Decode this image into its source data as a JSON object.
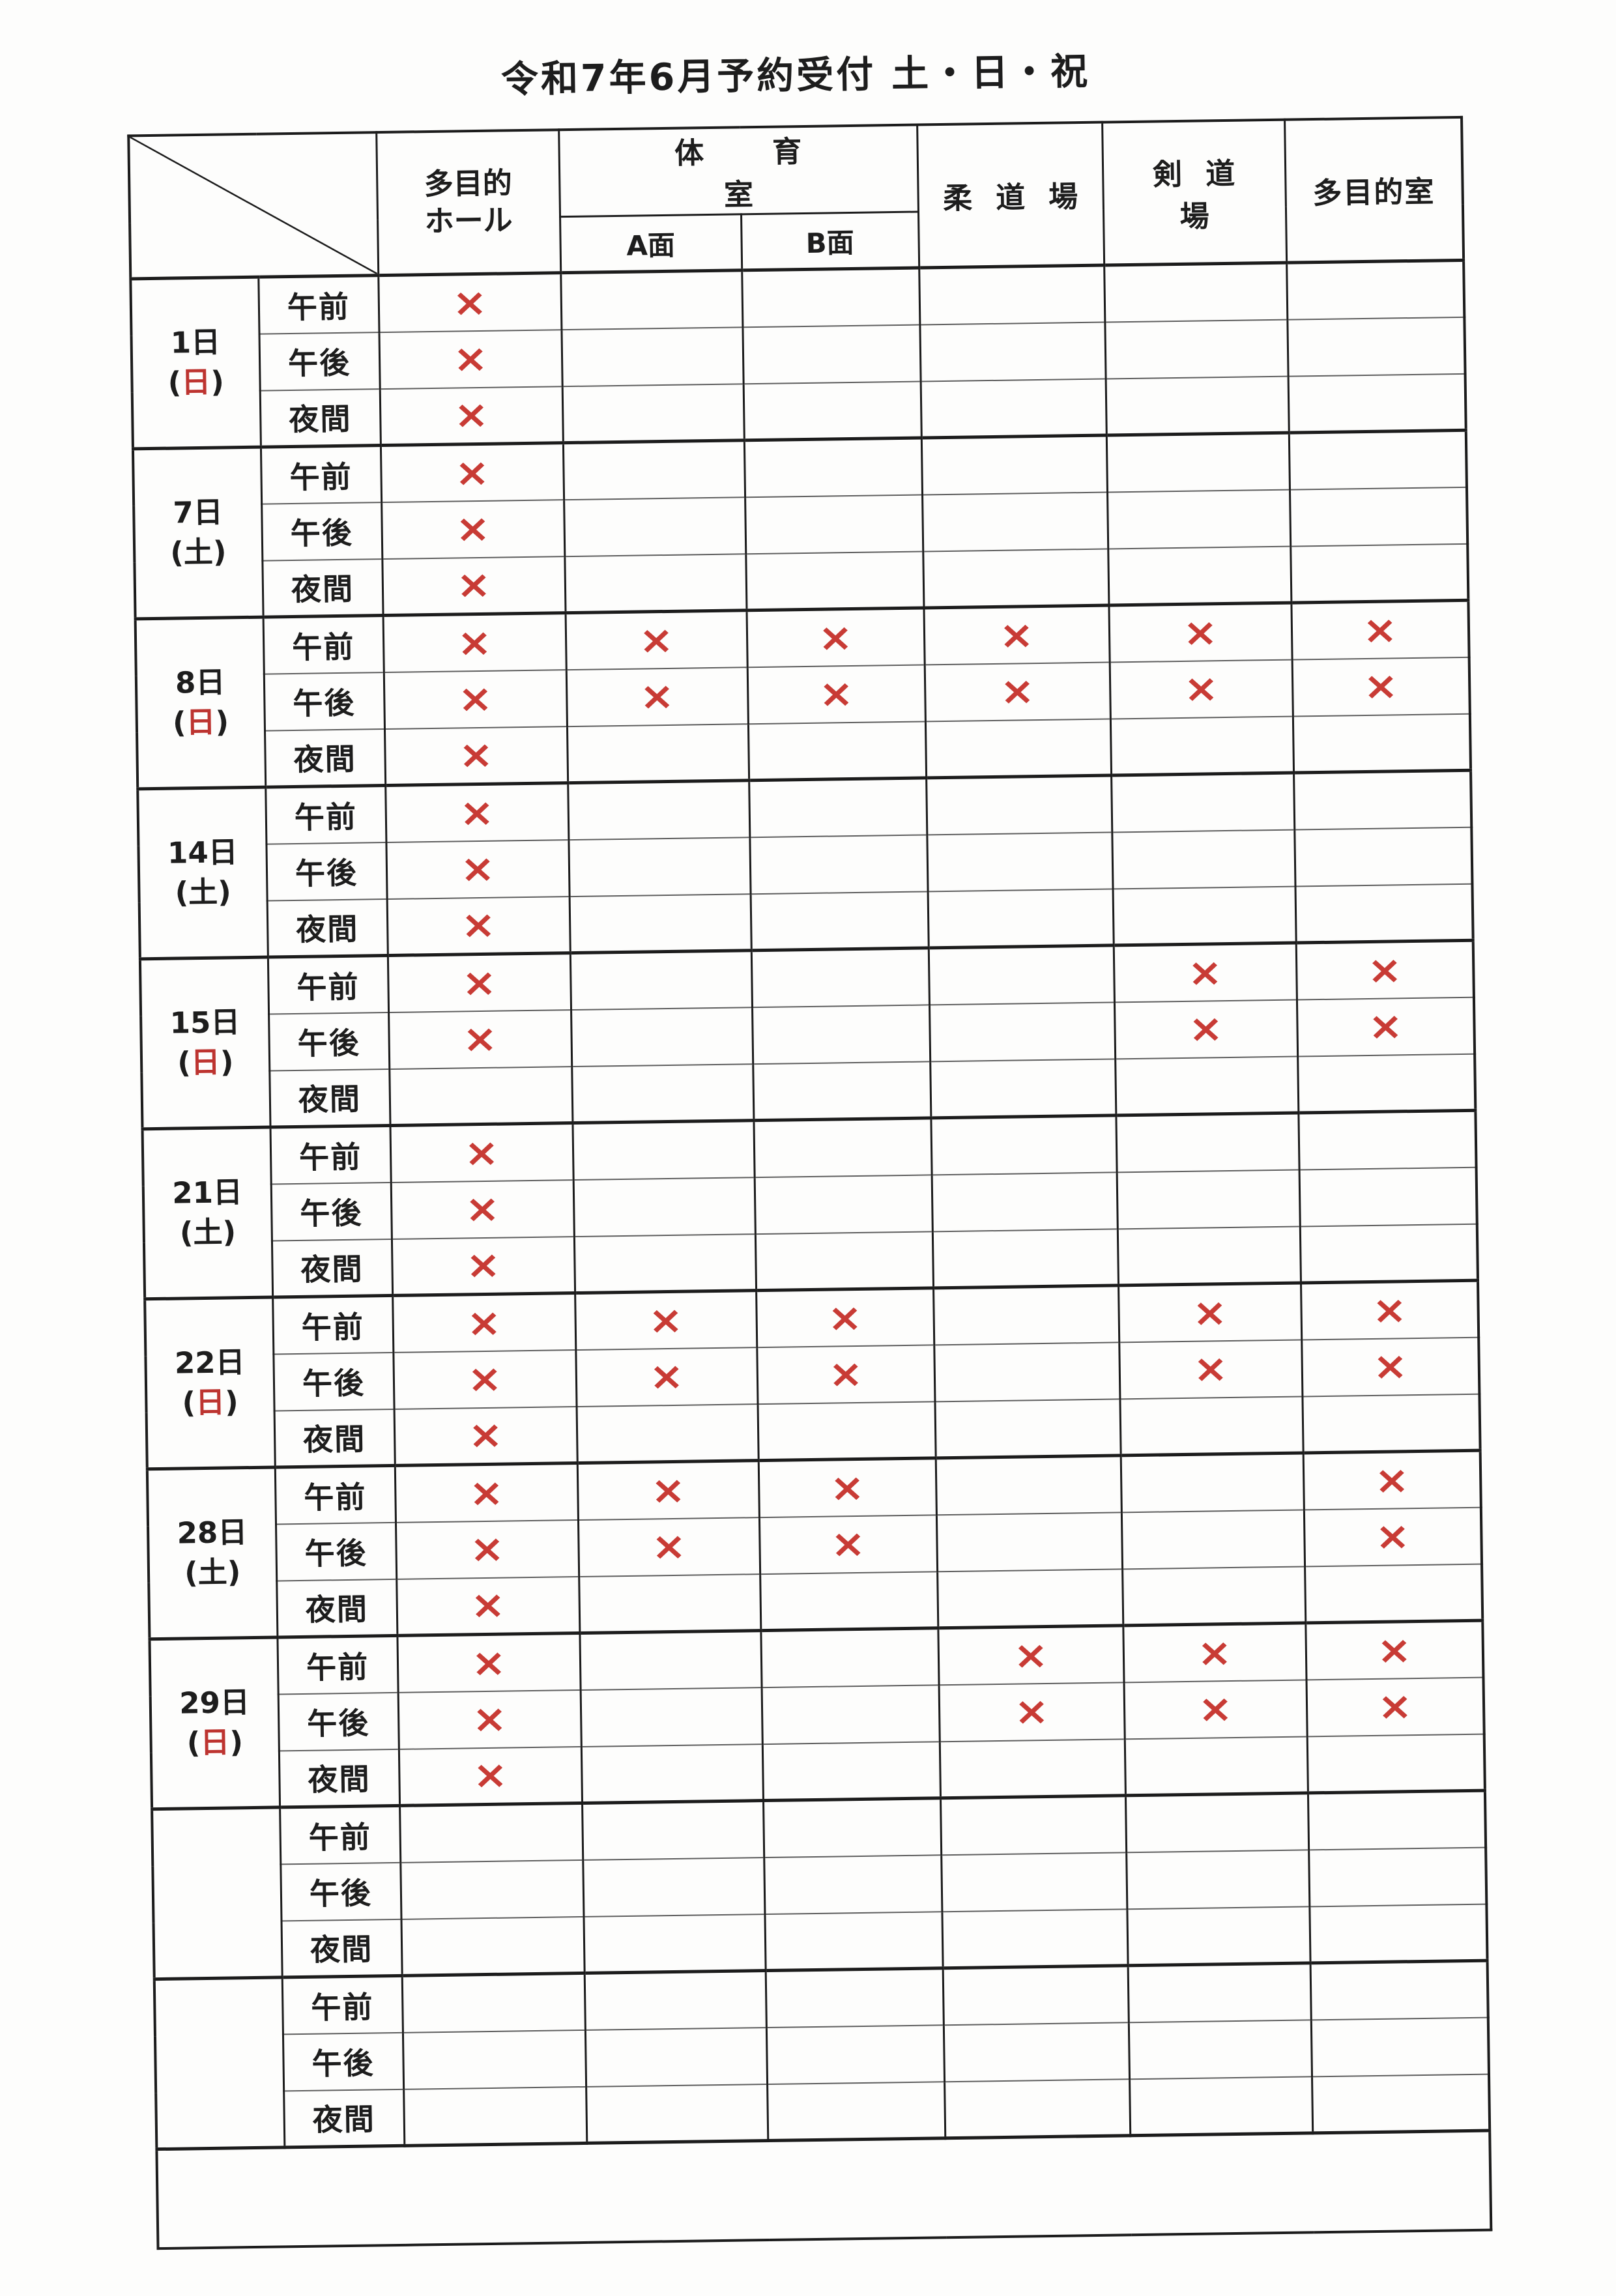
{
  "title": "令和7年6月予約受付 土・日・祝",
  "table": {
    "header": {
      "hall_line1": "多目的",
      "hall_line2": "ホール",
      "gym": "体育室",
      "gym_a": "A面",
      "gym_b": "B面",
      "judo": "柔道場",
      "kendo": "剣道場",
      "room": "多目的室"
    },
    "time_slots": [
      "午前",
      "午後",
      "夜間"
    ],
    "paren_open": "(",
    "paren_close": ")",
    "mark_symbol": "×",
    "colors": {
      "mark": "#c83b35",
      "sunday_red": "#bd3430",
      "line": "#1c1c1c"
    },
    "day_groups": [
      {
        "date": "1日",
        "weekday": "日",
        "is_sunday": true,
        "marks": [
          [
            1,
            0,
            0,
            0,
            0,
            0
          ],
          [
            1,
            0,
            0,
            0,
            0,
            0
          ],
          [
            1,
            0,
            0,
            0,
            0,
            0
          ]
        ]
      },
      {
        "date": "7日",
        "weekday": "土",
        "is_sunday": false,
        "marks": [
          [
            1,
            0,
            0,
            0,
            0,
            0
          ],
          [
            1,
            0,
            0,
            0,
            0,
            0
          ],
          [
            1,
            0,
            0,
            0,
            0,
            0
          ]
        ]
      },
      {
        "date": "8日",
        "weekday": "日",
        "is_sunday": true,
        "marks": [
          [
            1,
            1,
            1,
            1,
            1,
            1
          ],
          [
            1,
            1,
            1,
            1,
            1,
            1
          ],
          [
            1,
            0,
            0,
            0,
            0,
            0
          ]
        ]
      },
      {
        "date": "14日",
        "weekday": "土",
        "is_sunday": false,
        "marks": [
          [
            1,
            0,
            0,
            0,
            0,
            0
          ],
          [
            1,
            0,
            0,
            0,
            0,
            0
          ],
          [
            1,
            0,
            0,
            0,
            0,
            0
          ]
        ]
      },
      {
        "date": "15日",
        "weekday": "日",
        "is_sunday": true,
        "marks": [
          [
            1,
            0,
            0,
            0,
            1,
            1
          ],
          [
            1,
            0,
            0,
            0,
            1,
            1
          ],
          [
            0,
            0,
            0,
            0,
            0,
            0
          ]
        ]
      },
      {
        "date": "21日",
        "weekday": "土",
        "is_sunday": false,
        "marks": [
          [
            1,
            0,
            0,
            0,
            0,
            0
          ],
          [
            1,
            0,
            0,
            0,
            0,
            0
          ],
          [
            1,
            0,
            0,
            0,
            0,
            0
          ]
        ]
      },
      {
        "date": "22日",
        "weekday": "日",
        "is_sunday": true,
        "marks": [
          [
            1,
            1,
            1,
            0,
            1,
            1
          ],
          [
            1,
            1,
            1,
            0,
            1,
            1
          ],
          [
            1,
            0,
            0,
            0,
            0,
            0
          ]
        ]
      },
      {
        "date": "28日",
        "weekday": "土",
        "is_sunday": false,
        "marks": [
          [
            1,
            1,
            1,
            0,
            0,
            1
          ],
          [
            1,
            1,
            1,
            0,
            0,
            1
          ],
          [
            1,
            0,
            0,
            0,
            0,
            0
          ]
        ]
      },
      {
        "date": "29日",
        "weekday": "日",
        "is_sunday": true,
        "marks": [
          [
            1,
            0,
            0,
            1,
            1,
            1
          ],
          [
            1,
            0,
            0,
            1,
            1,
            1
          ],
          [
            1,
            0,
            0,
            0,
            0,
            0
          ]
        ]
      },
      {
        "date": "",
        "weekday": "",
        "is_sunday": false,
        "marks": [
          [
            0,
            0,
            0,
            0,
            0,
            0
          ],
          [
            0,
            0,
            0,
            0,
            0,
            0
          ],
          [
            0,
            0,
            0,
            0,
            0,
            0
          ]
        ]
      },
      {
        "date": "",
        "weekday": "",
        "is_sunday": false,
        "marks": [
          [
            0,
            0,
            0,
            0,
            0,
            0
          ],
          [
            0,
            0,
            0,
            0,
            0,
            0
          ],
          [
            0,
            0,
            0,
            0,
            0,
            0
          ]
        ]
      }
    ]
  }
}
